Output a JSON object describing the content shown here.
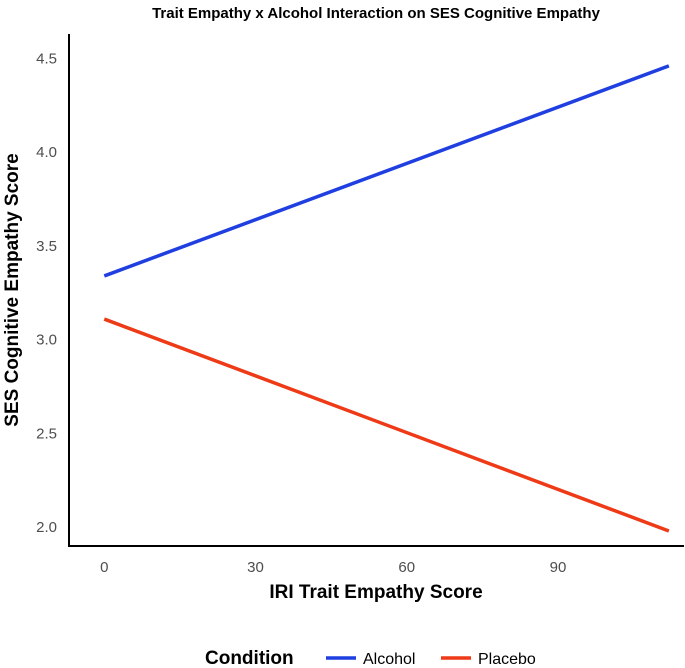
{
  "chart_data": {
    "type": "line",
    "title": "Trait Empathy x Alcohol Interaction on SES Cognitive Empathy",
    "xlabel": "IRI Trait Empathy Score",
    "ylabel": "SES Cognitive Empathy Score",
    "xlim": [
      -7,
      115
    ],
    "ylim": [
      1.9,
      4.63
    ],
    "xticks": [
      0,
      30,
      60,
      90
    ],
    "xtick_labels": [
      "0",
      "30",
      "60",
      "90"
    ],
    "yticks": [
      2.0,
      2.5,
      3.0,
      3.5,
      4.0,
      4.5
    ],
    "ytick_labels": [
      "2.0",
      "2.5",
      "3.0",
      "3.5",
      "4.0",
      "4.5"
    ],
    "grid": false,
    "legend": {
      "title": "Condition",
      "position": "bottom"
    },
    "series": [
      {
        "name": "Alcohol",
        "color": "#1f3fe0",
        "x": [
          0,
          112
        ],
        "y": [
          3.34,
          4.46
        ]
      },
      {
        "name": "Placebo",
        "color": "#ee3a16",
        "x": [
          0,
          112
        ],
        "y": [
          3.11,
          1.98
        ]
      }
    ]
  }
}
